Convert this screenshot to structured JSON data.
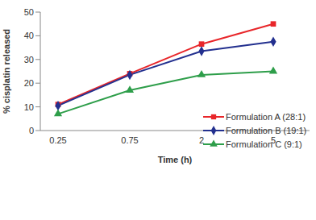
{
  "chart_data": {
    "type": "line",
    "x_label": "Time (h)",
    "y_label": "% cisplatin released",
    "categories": [
      "0.25",
      "0.75",
      "2",
      "5"
    ],
    "series": [
      {
        "name": "Formulation A (28:1)",
        "color": "#e8262a",
        "marker": "square",
        "values": [
          11,
          24,
          36.5,
          45
        ]
      },
      {
        "name": "Formulation B (19:1)",
        "color": "#23308f",
        "marker": "diamond",
        "values": [
          10.5,
          23.5,
          33.5,
          37.5
        ]
      },
      {
        "name": "Formulation C (9:1)",
        "color": "#2e9e4a",
        "marker": "triangle",
        "values": [
          7,
          17,
          23.5,
          25
        ]
      }
    ],
    "ylim": [
      0,
      50
    ],
    "yticks": [
      0,
      10,
      20,
      30,
      40,
      50
    ],
    "grid": false,
    "legend": "lower right"
  }
}
